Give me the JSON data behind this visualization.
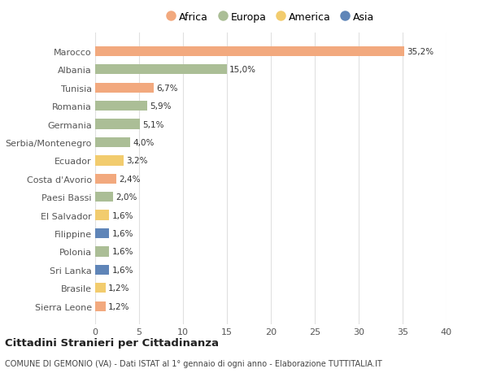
{
  "countries": [
    "Sierra Leone",
    "Brasile",
    "Sri Lanka",
    "Polonia",
    "Filippine",
    "El Salvador",
    "Paesi Bassi",
    "Costa d'Avorio",
    "Ecuador",
    "Serbia/Montenegro",
    "Germania",
    "Romania",
    "Tunisia",
    "Albania",
    "Marocco"
  ],
  "values": [
    1.2,
    1.2,
    1.6,
    1.6,
    1.6,
    1.6,
    2.0,
    2.4,
    3.2,
    4.0,
    5.1,
    5.9,
    6.7,
    15.0,
    35.2
  ],
  "labels": [
    "1,2%",
    "1,2%",
    "1,6%",
    "1,6%",
    "1,6%",
    "1,6%",
    "2,0%",
    "2,4%",
    "3,2%",
    "4,0%",
    "5,1%",
    "5,9%",
    "6,7%",
    "15,0%",
    "35,2%"
  ],
  "continents": [
    "Africa",
    "America",
    "Asia",
    "Europa",
    "Asia",
    "America",
    "Europa",
    "Africa",
    "America",
    "Europa",
    "Europa",
    "Europa",
    "Africa",
    "Europa",
    "Africa"
  ],
  "colors": {
    "Africa": "#F2A97E",
    "Europa": "#ABBE96",
    "America": "#F2CC6E",
    "Asia": "#5F85B8"
  },
  "legend_order": [
    "Africa",
    "Europa",
    "America",
    "Asia"
  ],
  "title": "Cittadini Stranieri per Cittadinanza",
  "subtitle": "COMUNE DI GEMONIO (VA) - Dati ISTAT al 1° gennaio di ogni anno - Elaborazione TUTTITALIA.IT",
  "xlim": [
    0,
    40
  ],
  "xticks": [
    0,
    5,
    10,
    15,
    20,
    25,
    30,
    35,
    40
  ],
  "background_color": "#ffffff",
  "grid_color": "#e0e0e0"
}
